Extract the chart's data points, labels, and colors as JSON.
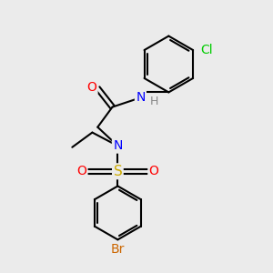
{
  "bg_color": "#ebebeb",
  "bond_color": "#000000",
  "bond_width": 1.5,
  "atom_colors": {
    "O": "#ff0000",
    "N": "#0000ff",
    "S": "#ccaa00",
    "Cl": "#00cc00",
    "Br": "#cc6600",
    "H": "#888888",
    "C": "#000000"
  },
  "font_size": 9,
  "fig_bg": "#ebebeb"
}
